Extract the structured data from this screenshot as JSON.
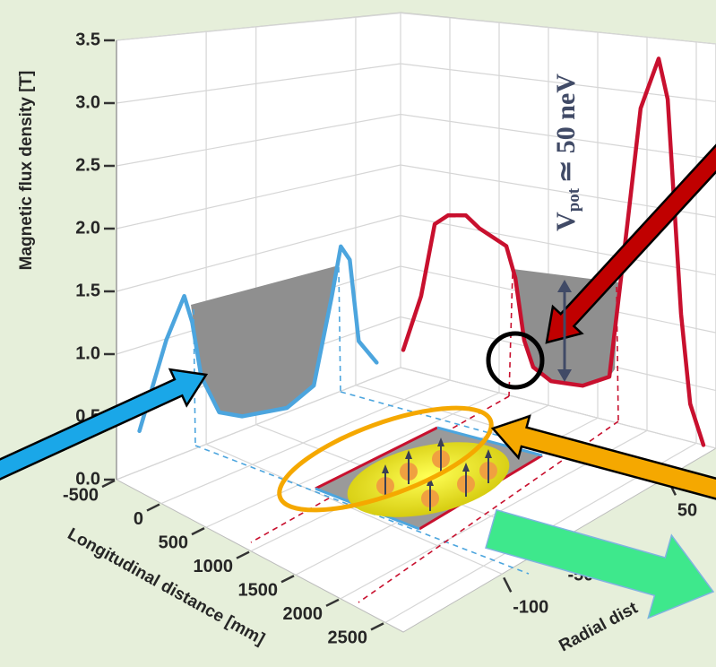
{
  "chart_data": {
    "type": "line",
    "ylabel": "Magnetic flux density [T]",
    "xlabel": "Longitudinal distance [mm]",
    "zlabel": "Radial dist",
    "ylim": [
      0,
      3.5
    ],
    "yticks": [
      {
        "value": 0,
        "label": "0.0"
      },
      0.5,
      {
        "value": 1,
        "label": "1.0"
      },
      1.5,
      {
        "value": 2,
        "label": "2.0"
      },
      2.5,
      {
        "value": 3,
        "label": "3.0"
      },
      3.5
    ],
    "xlim": [
      -500,
      2700
    ],
    "xticks": [
      -500,
      0,
      500,
      1000,
      1500,
      2000,
      2500
    ],
    "zlim": [
      -190,
      95
    ],
    "zticks": [
      -100,
      -50,
      50
    ],
    "grid": true,
    "annotation": {
      "text": "V",
      "subscript": "pot",
      "suffix": "≃ 50 neV"
    },
    "series": [
      {
        "color": "#c8102e",
        "x": [
          -473,
          -292,
          -154,
          -17,
          163,
          300,
          436,
          573,
          664,
          755,
          845,
          1027,
          1346,
          1618,
          1800,
          1935,
          2118,
          2210,
          2345,
          2438,
          2573
        ],
        "values": [
          0.18,
          0.75,
          1.48,
          1.59,
          1.62,
          1.52,
          1.46,
          1.4,
          1.12,
          0.55,
          0.32,
          0.23,
          0.26,
          0.4,
          1.8,
          2.86,
          3.32,
          2.97,
          1.1,
          0.33,
          0.0
        ]
      },
      {
        "color": "#4ca5de",
        "z": [
          -167,
          -140,
          -122,
          -114,
          -105,
          -87,
          -64,
          -19,
          8,
          26,
          35,
          44,
          53,
          71
        ],
        "values": [
          0.32,
          0.99,
          1.31,
          1.07,
          0.59,
          0.23,
          0.12,
          0.04,
          0.15,
          0.92,
          1.36,
          1.21,
          0.41,
          0.14
        ]
      }
    ]
  }
}
